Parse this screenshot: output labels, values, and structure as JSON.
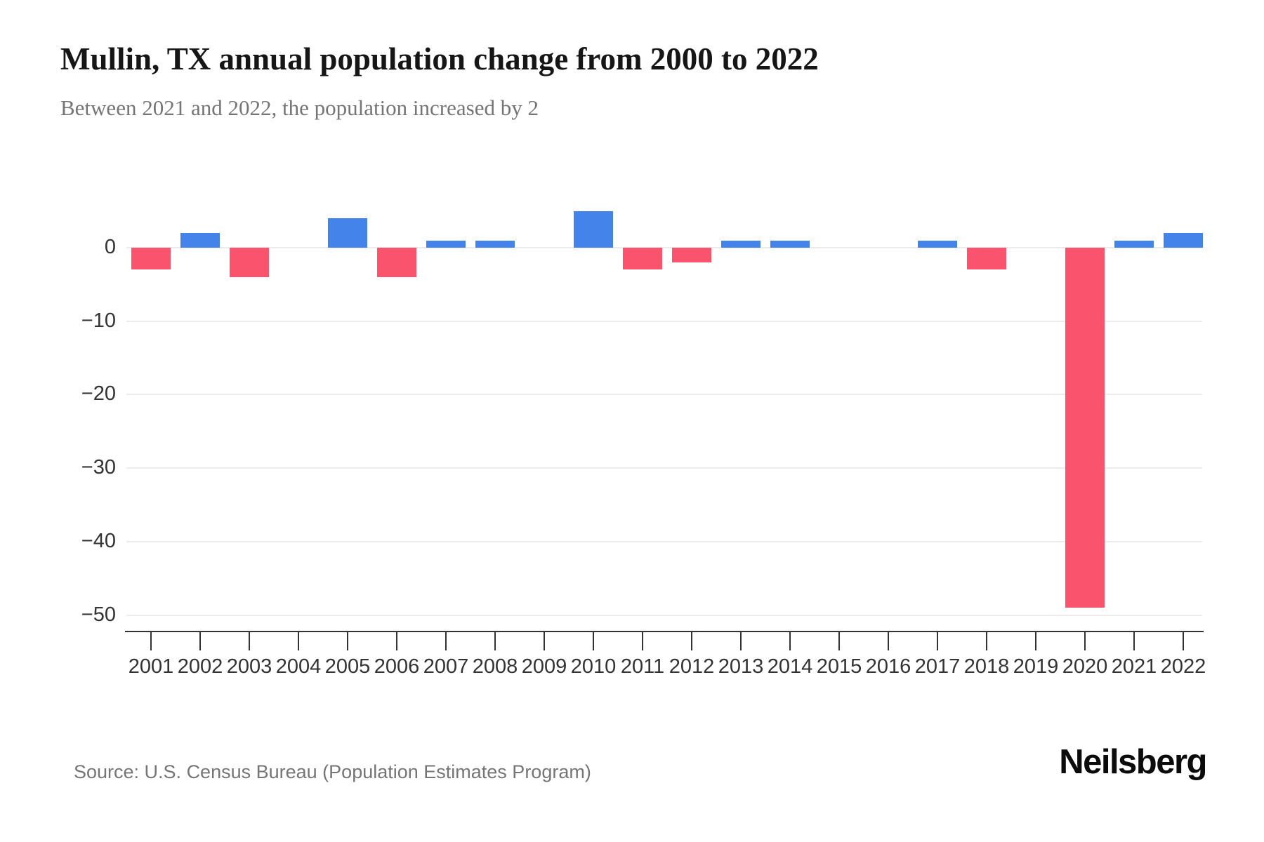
{
  "header": {
    "title": "Mullin, TX annual population change from 2000 to 2022",
    "subtitle": "Between 2021 and 2022, the population increased by 2"
  },
  "footer": {
    "source": "Source: U.S. Census Bureau (Population Estimates Program)",
    "brand": "Neilsberg"
  },
  "chart_data": {
    "type": "bar",
    "title": "Mullin, TX annual population change from 2000 to 2022",
    "subtitle": "Between 2021 and 2022, the population increased by 2",
    "xlabel": "",
    "ylabel": "",
    "categories": [
      "2001",
      "2002",
      "2003",
      "2004",
      "2005",
      "2006",
      "2007",
      "2008",
      "2009",
      "2010",
      "2011",
      "2012",
      "2013",
      "2014",
      "2015",
      "2016",
      "2017",
      "2018",
      "2019",
      "2020",
      "2021",
      "2022"
    ],
    "values": [
      -3,
      2,
      -4,
      0,
      4,
      -4,
      1,
      1,
      0,
      5,
      -3,
      -2,
      1,
      1,
      0,
      0,
      1,
      -3,
      0,
      -49,
      1,
      2
    ],
    "y_ticks": [
      0,
      -10,
      -20,
      -30,
      -40,
      -50
    ],
    "y_tick_labels": [
      "0",
      "−10",
      "−20",
      "−30",
      "−40",
      "−50"
    ],
    "ylim": [
      -52,
      8
    ],
    "grid": true,
    "legend": false,
    "colors": {
      "positive": "#4483ea",
      "negative": "#f9536e",
      "gridline": "#ececec",
      "axis": "#333333",
      "title": "#161616",
      "subtitle": "#757575"
    }
  }
}
